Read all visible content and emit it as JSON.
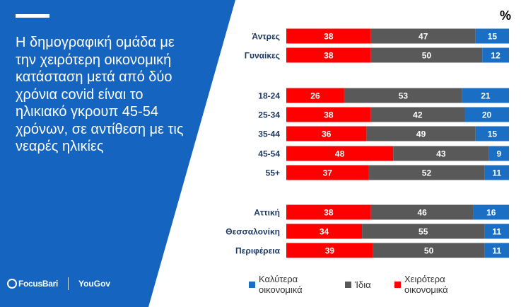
{
  "headline": "Η δημογραφική ομάδα με την χειρότερη οικονομική κατάσταση μετά από δύο χρόνια covid είναι το ηλικιακό γκρουπ 45-54 χρόνων, σε αντίθεση με τις νεαρές ηλικίες",
  "logos": {
    "focusbari": "FocusBari",
    "yougov": "YouGov"
  },
  "colors": {
    "panel": "#1565c0",
    "worse": "#ff0000",
    "same": "#595959",
    "better": "#1a6fc4"
  },
  "chart_data": {
    "type": "stacked-bar-horizontal",
    "unit": "%",
    "categories": [
      "Άντρες",
      "Γυναίκες",
      "18-24",
      "25-34",
      "35-44",
      "45-54",
      "55+",
      "Αττική",
      "Θεσσαλονίκη",
      "Περιφέρεια"
    ],
    "groups": [
      [
        "Άντρες",
        "Γυναίκες"
      ],
      [
        "18-24",
        "25-34",
        "35-44",
        "45-54",
        "55+"
      ],
      [
        "Αττική",
        "Θεσσαλονίκη",
        "Περιφέρεια"
      ]
    ],
    "series": [
      {
        "name": "Χειρότερα οικονομικά",
        "color": "#ff0000",
        "values": [
          38,
          38,
          26,
          38,
          36,
          48,
          37,
          38,
          34,
          39
        ]
      },
      {
        "name": "Ίδια",
        "color": "#595959",
        "values": [
          47,
          50,
          53,
          42,
          49,
          43,
          52,
          46,
          55,
          50
        ]
      },
      {
        "name": "Καλύτερα οικονομικά",
        "color": "#1a6fc4",
        "values": [
          15,
          12,
          21,
          20,
          15,
          9,
          11,
          16,
          11,
          11
        ]
      }
    ],
    "xlim": [
      0,
      100
    ]
  },
  "legend": [
    {
      "label": "Καλύτερα οικονομικά",
      "color": "#1a6fc4"
    },
    {
      "label": "Ίδια",
      "color": "#595959"
    },
    {
      "label": "Χειρότερα οικονομικά",
      "color": "#ff0000"
    }
  ]
}
